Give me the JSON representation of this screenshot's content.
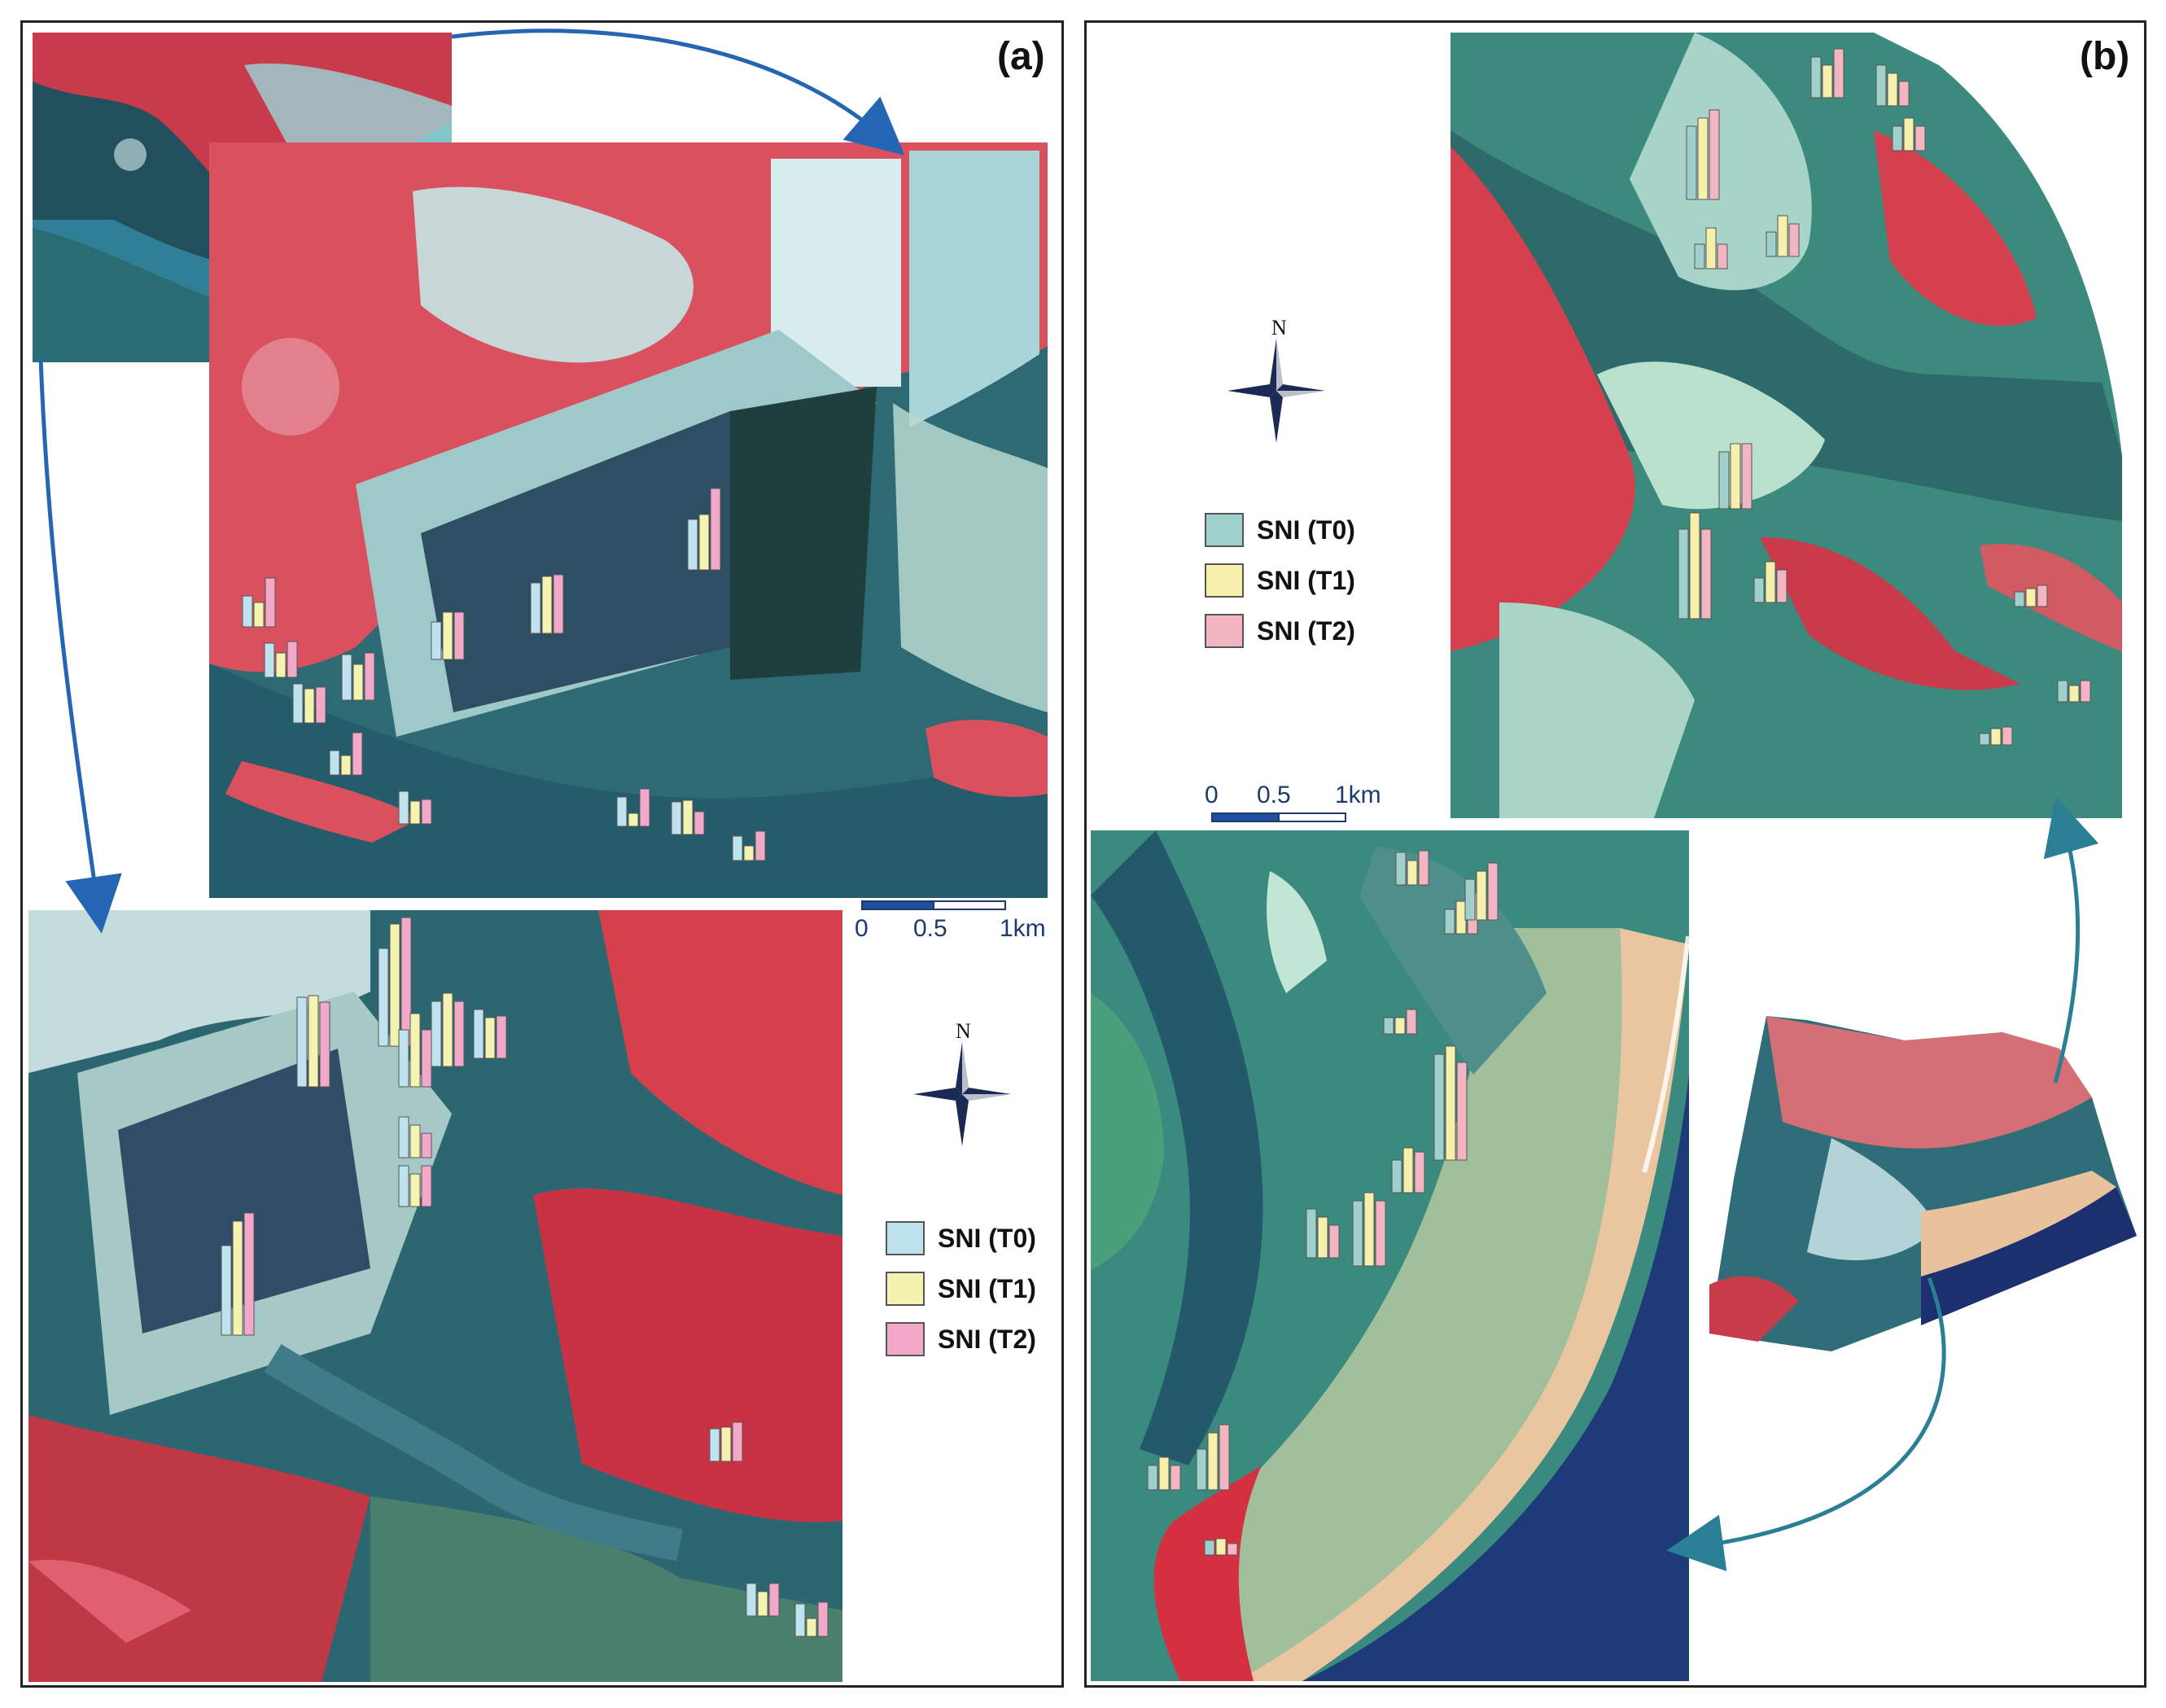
{
  "panel_a": {
    "label": "(a)",
    "legend": [
      {
        "text": "SNI (T0)",
        "color": "#bfe3ee"
      },
      {
        "text": "SNI (T1)",
        "color": "#f4f4b0"
      },
      {
        "text": "SNI (T2)",
        "color": "#f2a9c9"
      }
    ],
    "scale": {
      "t0": "0",
      "t1": "0.5",
      "t2": "1km"
    },
    "compass_n": "N"
  },
  "panel_b": {
    "label": "(b)",
    "legend": [
      {
        "text": "SNI (T0)",
        "color": "#9fd0cc"
      },
      {
        "text": "SNI (T1)",
        "color": "#f7f0ad"
      },
      {
        "text": "SNI (T2)",
        "color": "#f3b5c2"
      }
    ],
    "scale": {
      "t0": "0",
      "t1": "0.5",
      "t2": "1km"
    },
    "compass_n": "N"
  },
  "colors": {
    "water": "#2c6f74",
    "deep_water": "#1f3f7d",
    "vegetation": "#d8404d",
    "pond": "#cfe6e3",
    "sand": "#e8c9a3",
    "arrow": "#2466b4",
    "arrow_b": "#2a7f95"
  }
}
